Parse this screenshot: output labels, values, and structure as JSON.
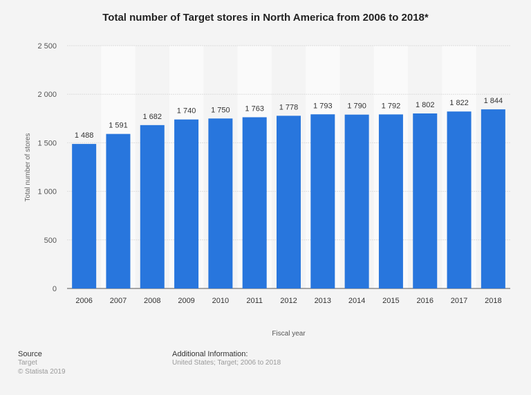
{
  "chart_data": {
    "type": "bar",
    "title": "Total number of Target stores in North America from 2006 to 2018*",
    "xlabel": "Fiscal year",
    "ylabel": "Total number of stores",
    "categories": [
      "2006",
      "2007",
      "2008",
      "2009",
      "2010",
      "2011",
      "2012",
      "2013",
      "2014",
      "2015",
      "2016",
      "2017",
      "2018"
    ],
    "values": [
      1488,
      1591,
      1682,
      1740,
      1750,
      1763,
      1778,
      1793,
      1790,
      1792,
      1802,
      1822,
      1844
    ],
    "data_labels": [
      "1 488",
      "1 591",
      "1 682",
      "1 740",
      "1 750",
      "1 763",
      "1 778",
      "1 793",
      "1 790",
      "1 792",
      "1 802",
      "1 822",
      "1 844"
    ],
    "ylim": [
      0,
      2500
    ],
    "yticks": [
      0,
      500,
      1000,
      1500,
      2000,
      2500
    ],
    "ytick_labels": [
      "0",
      "500",
      "1 000",
      "1 500",
      "2 000",
      "2 500"
    ],
    "grid": true,
    "bar_color": "#2876dd"
  },
  "footer": {
    "source_label": "Source",
    "source_lines": [
      "Target",
      "© Statista 2019"
    ],
    "info_label": "Additional Information:",
    "info_text": "United States; Target; 2006 to 2018"
  }
}
